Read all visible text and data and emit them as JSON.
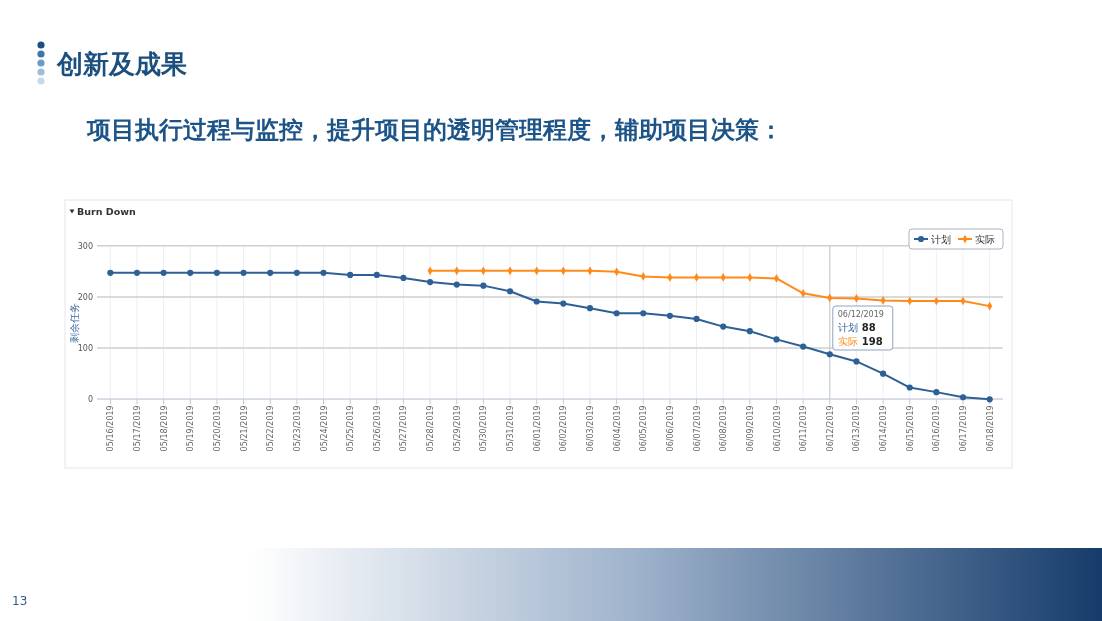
{
  "chart_data": {
    "type": "line",
    "title": "Burn Down",
    "ylabel": "剩余任务",
    "categories": [
      "05/16/2019",
      "05/17/2019",
      "05/18/2019",
      "05/19/2019",
      "05/20/2019",
      "05/21/2019",
      "05/22/2019",
      "05/23/2019",
      "05/24/2019",
      "05/25/2019",
      "05/26/2019",
      "05/27/2019",
      "05/28/2019",
      "05/29/2019",
      "05/30/2019",
      "05/31/2019",
      "06/01/2019",
      "06/02/2019",
      "06/03/2019",
      "06/04/2019",
      "06/05/2019",
      "06/06/2019",
      "06/07/2019",
      "06/08/2019",
      "06/09/2019",
      "06/10/2019",
      "06/11/2019",
      "06/12/2019",
      "06/13/2019",
      "06/14/2019",
      "06/15/2019",
      "06/16/2019",
      "06/17/2019",
      "06/18/2019"
    ],
    "series": [
      {
        "name": "计划",
        "color": "#2e6096",
        "marker": "circle",
        "values": [
          247,
          247,
          247,
          247,
          247,
          247,
          247,
          247,
          247,
          243,
          243,
          237,
          229,
          224,
          222,
          211,
          191,
          187,
          178,
          168,
          168,
          163,
          157,
          142,
          133,
          117,
          103,
          88,
          74,
          50,
          23,
          14,
          4,
          0
        ]
      },
      {
        "name": "实际",
        "color": "#ff8a1a",
        "marker": "diamond",
        "values": [
          null,
          null,
          null,
          null,
          null,
          null,
          null,
          null,
          null,
          null,
          null,
          null,
          251,
          251,
          251,
          251,
          251,
          251,
          251,
          249,
          240,
          238,
          238,
          238,
          238,
          236,
          207,
          198,
          197,
          193,
          192,
          192,
          192,
          182
        ]
      }
    ],
    "ylim": [
      0,
      300
    ],
    "yticks": [
      0,
      100,
      200,
      300
    ],
    "grid": true,
    "legend": "top right",
    "ref_lines": [
      {
        "axis": "x",
        "value": "06/12/2019",
        "color": "#c4c8d0"
      }
    ],
    "annotations": [
      "创新及成果",
      "项目执行过程与监控，提升项目的透明管理程度，辅助项目决策：",
      "13",
      "88",
      "198"
    ]
  }
}
